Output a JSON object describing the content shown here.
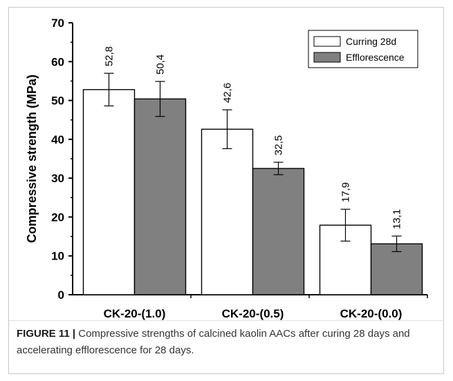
{
  "chart_data": {
    "type": "bar",
    "ylabel": "Compressive strength (MPa)",
    "xlabel": "",
    "ylim": [
      0,
      70
    ],
    "yticks": [
      0,
      10,
      20,
      30,
      40,
      50,
      60,
      70
    ],
    "categories": [
      "CK-20-(1.0)",
      "CK-20-(0.5)",
      "CK-20-(0.0)"
    ],
    "series": [
      {
        "name": "Curring 28d",
        "values": [
          52.8,
          42.6,
          17.9
        ],
        "labels": [
          "52,8",
          "42,6",
          "17,9"
        ],
        "errors": [
          4.2,
          5.0,
          4.1
        ],
        "color": "#ffffff"
      },
      {
        "name": "Efflorescence",
        "values": [
          50.4,
          32.5,
          13.1
        ],
        "labels": [
          "50,4",
          "32,5",
          "13,1"
        ],
        "errors": [
          4.5,
          1.6,
          2.0
        ],
        "color": "#808080"
      }
    ],
    "legend_position": "top-right",
    "grid": false
  },
  "caption": {
    "label": "FIGURE 11 |",
    "text": " Compressive strengths of calcined kaolin AACs after curing 28 days and accelerating efflorescence for 28 days."
  }
}
